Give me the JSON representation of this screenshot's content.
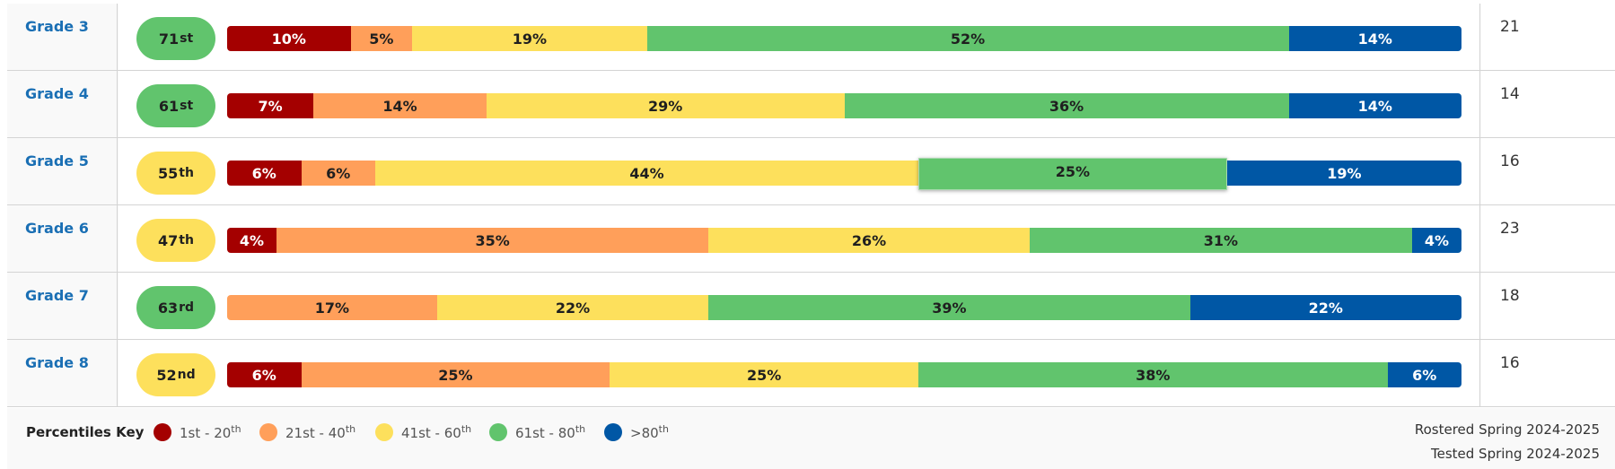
{
  "colors": {
    "band1": "#a40000",
    "band2": "#ff9f5a",
    "band3": "#fde05c",
    "band4": "#61c46d",
    "band5": "#0057a5"
  },
  "rows": [
    {
      "grade": "Grade 3",
      "percentile": "71",
      "suffix": "st",
      "pill_color": "green",
      "count": "21",
      "segments": [
        {
          "value": 10,
          "label": "10%"
        },
        {
          "value": 5,
          "label": "5%"
        },
        {
          "value": 19,
          "label": "19%"
        },
        {
          "value": 52,
          "label": "52%"
        },
        {
          "value": 14,
          "label": "14%"
        }
      ]
    },
    {
      "grade": "Grade 4",
      "percentile": "61",
      "suffix": "st",
      "pill_color": "green",
      "count": "14",
      "segments": [
        {
          "value": 7,
          "label": "7%"
        },
        {
          "value": 14,
          "label": "14%"
        },
        {
          "value": 29,
          "label": "29%"
        },
        {
          "value": 36,
          "label": "36%"
        },
        {
          "value": 14,
          "label": "14%"
        }
      ]
    },
    {
      "grade": "Grade 5",
      "percentile": "55",
      "suffix": "th",
      "pill_color": "yellow",
      "count": "16",
      "highlight_band": 3,
      "segments": [
        {
          "value": 6,
          "label": "6%"
        },
        {
          "value": 6,
          "label": "6%"
        },
        {
          "value": 44,
          "label": "44%"
        },
        {
          "value": 25,
          "label": "25%"
        },
        {
          "value": 19,
          "label": "19%"
        }
      ]
    },
    {
      "grade": "Grade 6",
      "percentile": "47",
      "suffix": "th",
      "pill_color": "yellow",
      "count": "23",
      "segments": [
        {
          "value": 4,
          "label": "4%"
        },
        {
          "value": 35,
          "label": "35%"
        },
        {
          "value": 26,
          "label": "26%"
        },
        {
          "value": 31,
          "label": "31%"
        },
        {
          "value": 4,
          "label": "4%"
        }
      ]
    },
    {
      "grade": "Grade 7",
      "percentile": "63",
      "suffix": "rd",
      "pill_color": "green",
      "count": "18",
      "segments": [
        {
          "value": 0,
          "label": ""
        },
        {
          "value": 17,
          "label": "17%"
        },
        {
          "value": 22,
          "label": "22%"
        },
        {
          "value": 39,
          "label": "39%"
        },
        {
          "value": 22,
          "label": "22%"
        }
      ]
    },
    {
      "grade": "Grade 8",
      "percentile": "52",
      "suffix": "nd",
      "pill_color": "yellow",
      "count": "16",
      "segments": [
        {
          "value": 6,
          "label": "6%"
        },
        {
          "value": 25,
          "label": "25%"
        },
        {
          "value": 25,
          "label": "25%"
        },
        {
          "value": 38,
          "label": "38%"
        },
        {
          "value": 6,
          "label": "6%"
        }
      ]
    }
  ],
  "key": {
    "title": "Percentiles Key",
    "items": [
      {
        "label": "1st - 20",
        "sup": "th",
        "color_key": "band1"
      },
      {
        "label": "21st - 40",
        "sup": "th",
        "color_key": "band2"
      },
      {
        "label": "41st - 60",
        "sup": "th",
        "color_key": "band3"
      },
      {
        "label": "61st - 80",
        "sup": "th",
        "color_key": "band4"
      },
      {
        "label": ">80",
        "sup": "th",
        "color_key": "band5"
      }
    ]
  },
  "meta": {
    "rostered": "Rostered Spring 2024-2025",
    "tested": "Tested Spring 2024-2025"
  }
}
